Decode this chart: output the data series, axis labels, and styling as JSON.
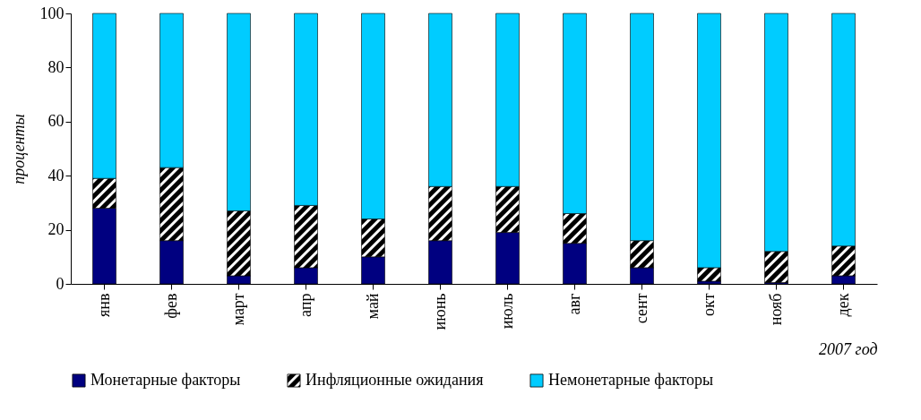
{
  "chart_data": {
    "type": "bar",
    "stacked": true,
    "ylabel": "проценты",
    "xlabel": "2007 год",
    "categories": [
      "янв",
      "фев",
      "март",
      "апр",
      "май",
      "июнь",
      "июль",
      "авг",
      "сент",
      "окт",
      "нояб",
      "дек"
    ],
    "series": [
      {
        "name": "Монетарные факторы",
        "color": "#000080",
        "values": [
          28,
          16,
          3,
          6,
          10,
          16,
          19,
          15,
          6,
          1,
          0.5,
          3
        ]
      },
      {
        "name": "Инфляционные ожидания",
        "color": "#000000",
        "values": [
          11,
          27,
          24,
          23,
          14,
          20,
          17,
          11,
          10,
          5,
          11.5,
          11
        ]
      },
      {
        "name": "Немонетарные факторы",
        "color": "#00ccff",
        "values": [
          61,
          57,
          73,
          71,
          76,
          64,
          64,
          74,
          84,
          94,
          88,
          86
        ]
      }
    ],
    "ylim": [
      0,
      100
    ],
    "yticks": [
      0,
      20,
      40,
      60,
      80,
      100
    ],
    "grid": false,
    "legend": "bottom"
  }
}
